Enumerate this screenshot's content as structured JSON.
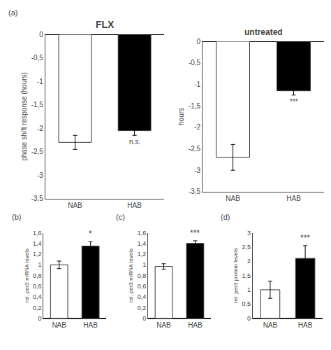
{
  "chart_data": [
    {
      "type": "bar",
      "title": "FLX",
      "categories": [
        "NAB",
        "HAB"
      ],
      "values": [
        -2.3,
        -2.05
      ],
      "errors": [
        0.15,
        0.1
      ],
      "colors": [
        "white",
        "black"
      ],
      "ylim": [
        -3.5,
        0
      ],
      "yticks": [
        0,
        {
          "value": -0.5,
          "label": "-0,5"
        },
        -1,
        {
          "value": -1.5,
          "label": "-1,5"
        },
        -2,
        {
          "value": -2.5,
          "label": "-2,5"
        },
        -3,
        {
          "value": -3.5,
          "label": "-3,5"
        }
      ],
      "ylabel": "phase shift response (hours)",
      "grid": false,
      "annotations": [
        {
          "text": "(a)"
        },
        {
          "text": "n.s.",
          "category": "HAB",
          "y": -2.18
        }
      ]
    },
    {
      "type": "bar",
      "title": "untreated",
      "categories": [
        "NAB",
        "HAB"
      ],
      "values": [
        -2.7,
        -1.15
      ],
      "errors": [
        0.3,
        0.1
      ],
      "colors": [
        "white",
        "black"
      ],
      "ylim": [
        -3.5,
        0
      ],
      "yticks": [
        0,
        {
          "value": -0.5,
          "label": "-0,5"
        },
        -1,
        {
          "value": -1.5,
          "label": "-1,5"
        },
        -2,
        {
          "value": -2.5,
          "label": "-2,5"
        },
        -3,
        {
          "value": -3.5,
          "label": "-3,5"
        }
      ],
      "ylabel": "hours",
      "grid": false,
      "annotations": [
        {
          "text": "***",
          "category": "HAB",
          "y": -1.28
        }
      ]
    },
    {
      "type": "bar",
      "categories": [
        "NAB",
        "HAB"
      ],
      "values": [
        1.0,
        1.35
      ],
      "errors": [
        0.07,
        0.08
      ],
      "colors": [
        "white",
        "black"
      ],
      "ylim": [
        0,
        1.6
      ],
      "yticks": [
        0,
        {
          "value": 0.2,
          "label": "0,2"
        },
        {
          "value": 0.4,
          "label": "0,4"
        },
        {
          "value": 0.6,
          "label": "0,6"
        },
        {
          "value": 0.8,
          "label": "0,8"
        },
        1,
        {
          "value": 1.2,
          "label": "1,2"
        },
        {
          "value": 1.4,
          "label": "1,4"
        },
        {
          "value": 1.6,
          "label": "1,6"
        }
      ],
      "ylabel": "rel. per2 mRNA levels",
      "grid": false,
      "annotations": [
        {
          "text": "(b)"
        },
        {
          "text": "*",
          "category": "HAB",
          "y": 1.46
        }
      ]
    },
    {
      "type": "bar",
      "categories": [
        "NAB",
        "HAB"
      ],
      "values": [
        0.97,
        1.4
      ],
      "errors": [
        0.05,
        0.05
      ],
      "colors": [
        "white",
        "black"
      ],
      "ylim": [
        0,
        1.6
      ],
      "yticks": [
        0,
        {
          "value": 0.2,
          "label": "0,2"
        },
        {
          "value": 0.4,
          "label": "0,4"
        },
        {
          "value": 0.6,
          "label": "0,6"
        },
        {
          "value": 0.8,
          "label": "0,8"
        },
        1,
        {
          "value": 1.2,
          "label": "1,2"
        },
        {
          "value": 1.4,
          "label": "1,4"
        },
        {
          "value": 1.6,
          "label": "1,6"
        }
      ],
      "ylabel": "rel. per3 mRNA levels",
      "grid": false,
      "annotations": [
        {
          "text": "(c)"
        },
        {
          "text": "***",
          "category": "HAB",
          "y": 1.48
        }
      ]
    },
    {
      "type": "bar",
      "categories": [
        "NAB",
        "HAB"
      ],
      "values": [
        1.0,
        2.1
      ],
      "errors": [
        0.3,
        0.45
      ],
      "colors": [
        "white",
        "black"
      ],
      "ylim": [
        0,
        3.0
      ],
      "yticks": [
        0,
        {
          "value": 0.5,
          "label": "0,5"
        },
        1,
        {
          "value": 1.5,
          "label": "1,5"
        },
        2,
        {
          "value": 2.5,
          "label": "2,5"
        },
        3
      ],
      "ylabel": "rel. per3 protein levels",
      "grid": false,
      "annotations": [
        {
          "text": "(d)"
        },
        {
          "text": "***",
          "category": "HAB",
          "y": 2.6
        }
      ]
    }
  ]
}
